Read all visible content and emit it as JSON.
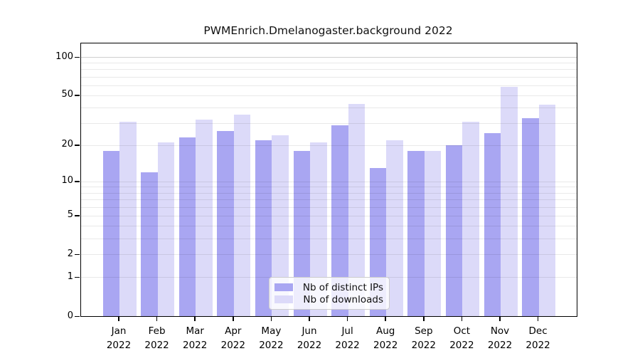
{
  "chart_data": {
    "type": "bar",
    "title": "PWMEnrich.Dmelanogaster.background 2022",
    "categories": [
      "Jan 2022",
      "Feb 2022",
      "Mar 2022",
      "Apr 2022",
      "May 2022",
      "Jun 2022",
      "Jul 2022",
      "Aug 2022",
      "Sep 2022",
      "Oct 2022",
      "Nov 2022",
      "Dec 2022"
    ],
    "series": [
      {
        "name": "Nb of distinct IPs",
        "color": "#a9a6f2",
        "values": [
          18,
          12,
          23,
          26,
          22,
          18,
          29,
          13,
          18,
          20,
          25,
          33
        ]
      },
      {
        "name": "Nb of downloads",
        "color": "#dcdaf9",
        "values": [
          31,
          21,
          32,
          35,
          24,
          21,
          43,
          22,
          18,
          31,
          58,
          42
        ]
      }
    ],
    "xlabel": "",
    "ylabel": "",
    "y_axis": {
      "scale": "log1p",
      "tick_values": [
        100,
        50,
        20,
        10,
        5,
        2,
        1,
        0
      ],
      "tick_labels": [
        "100",
        "50",
        "20",
        "10",
        "5",
        "2",
        "1",
        "0"
      ],
      "minor_grid_values": [
        1,
        2,
        3,
        4,
        5,
        6,
        7,
        8,
        9,
        10,
        20,
        30,
        40,
        50,
        60,
        70,
        80,
        90,
        100
      ],
      "ylim": [
        0,
        125
      ],
      "grid": "on"
    },
    "legend": {
      "position": "inside-lower-center",
      "entries": [
        "Nb of distinct IPs",
        "Nb of downloads"
      ]
    },
    "colors": {
      "bar_dark": "#a9a6f2",
      "bar_light": "#dcdaf9",
      "frame": "#000000",
      "grid": "#e9e9e9",
      "grid_top": "#cfcfcf",
      "text": "#000000"
    }
  }
}
